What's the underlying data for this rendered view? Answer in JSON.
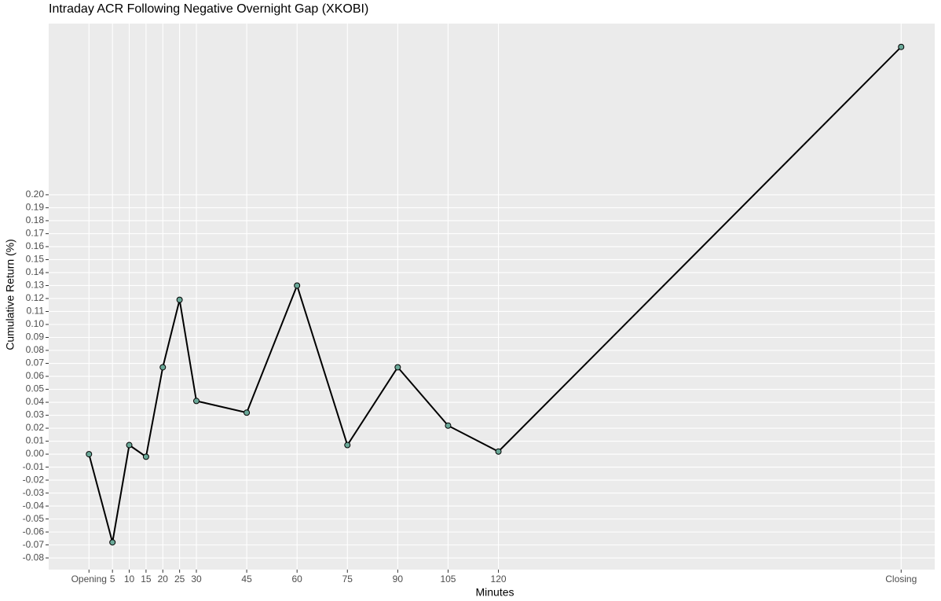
{
  "chart_data": {
    "type": "line",
    "title": "Intraday ACR Following Negative Overnight Gap (XKOBI)",
    "x_label": "Minutes",
    "y_label": "Cumulative Return (%)",
    "x": [
      -2,
      5,
      10,
      15,
      20,
      25,
      30,
      45,
      60,
      75,
      90,
      105,
      120,
      240
    ],
    "series": [
      {
        "name": "ACR",
        "color": "#000000",
        "marker_color": "#6aa898",
        "values": [
          0.0,
          -0.068,
          0.007,
          -0.002,
          0.067,
          0.119,
          0.041,
          0.032,
          0.13,
          0.007,
          0.067,
          0.022,
          0.002,
          0.314
        ]
      }
    ],
    "xlim": [
      -14,
      250
    ],
    "xticks": [
      {
        "value": -2,
        "label": "Opening"
      },
      5,
      10,
      15,
      20,
      25,
      30,
      45,
      60,
      75,
      90,
      105,
      120,
      {
        "value": 240,
        "label": "Closing"
      }
    ],
    "ylim": [
      -0.089,
      0.332
    ],
    "yticks": [
      -0.08,
      -0.07,
      -0.06,
      -0.05,
      -0.04,
      -0.03,
      -0.02,
      -0.01,
      {
        "value": 0,
        "label": "0.00"
      },
      0.01,
      0.02,
      0.03,
      0.04,
      0.05,
      0.06,
      0.07,
      0.08,
      0.09,
      {
        "value": 0.1,
        "label": "0.10"
      },
      0.11,
      0.12,
      0.13,
      0.14,
      0.15,
      0.16,
      0.17,
      0.18,
      0.19,
      {
        "value": 0.2,
        "label": "0.20"
      }
    ],
    "grid": true
  }
}
